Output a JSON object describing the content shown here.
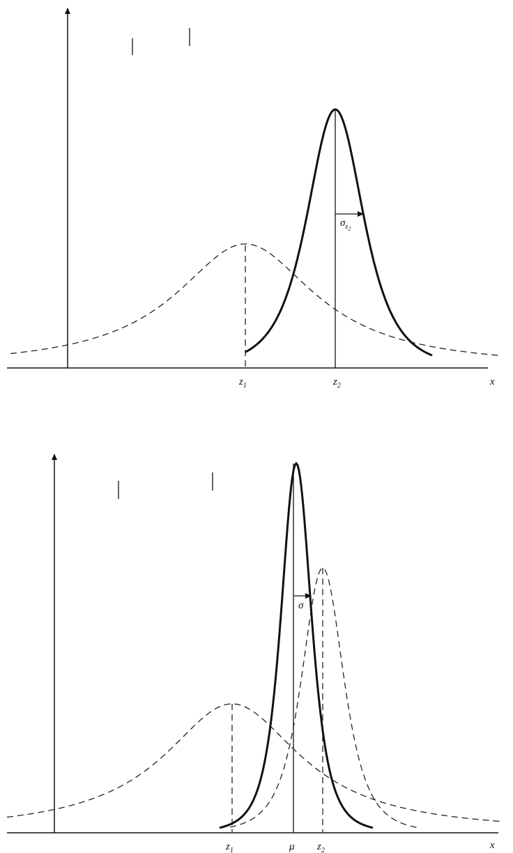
{
  "figures": [
    {
      "axis_label": "x",
      "labels": [
        {
          "symbol": "z",
          "subscript": "1"
        },
        {
          "symbol": "z",
          "subscript": "2"
        }
      ],
      "spread_label": {
        "symbol": "σ",
        "subscript": "z",
        "subsubscript": "2"
      }
    },
    {
      "axis_label": "x",
      "labels": [
        {
          "symbol": "z",
          "subscript": "1"
        },
        {
          "symbol": "μ",
          "subscript": ""
        },
        {
          "symbol": "z",
          "subscript": "2"
        }
      ],
      "spread_label": {
        "symbol": "σ"
      }
    }
  ]
}
